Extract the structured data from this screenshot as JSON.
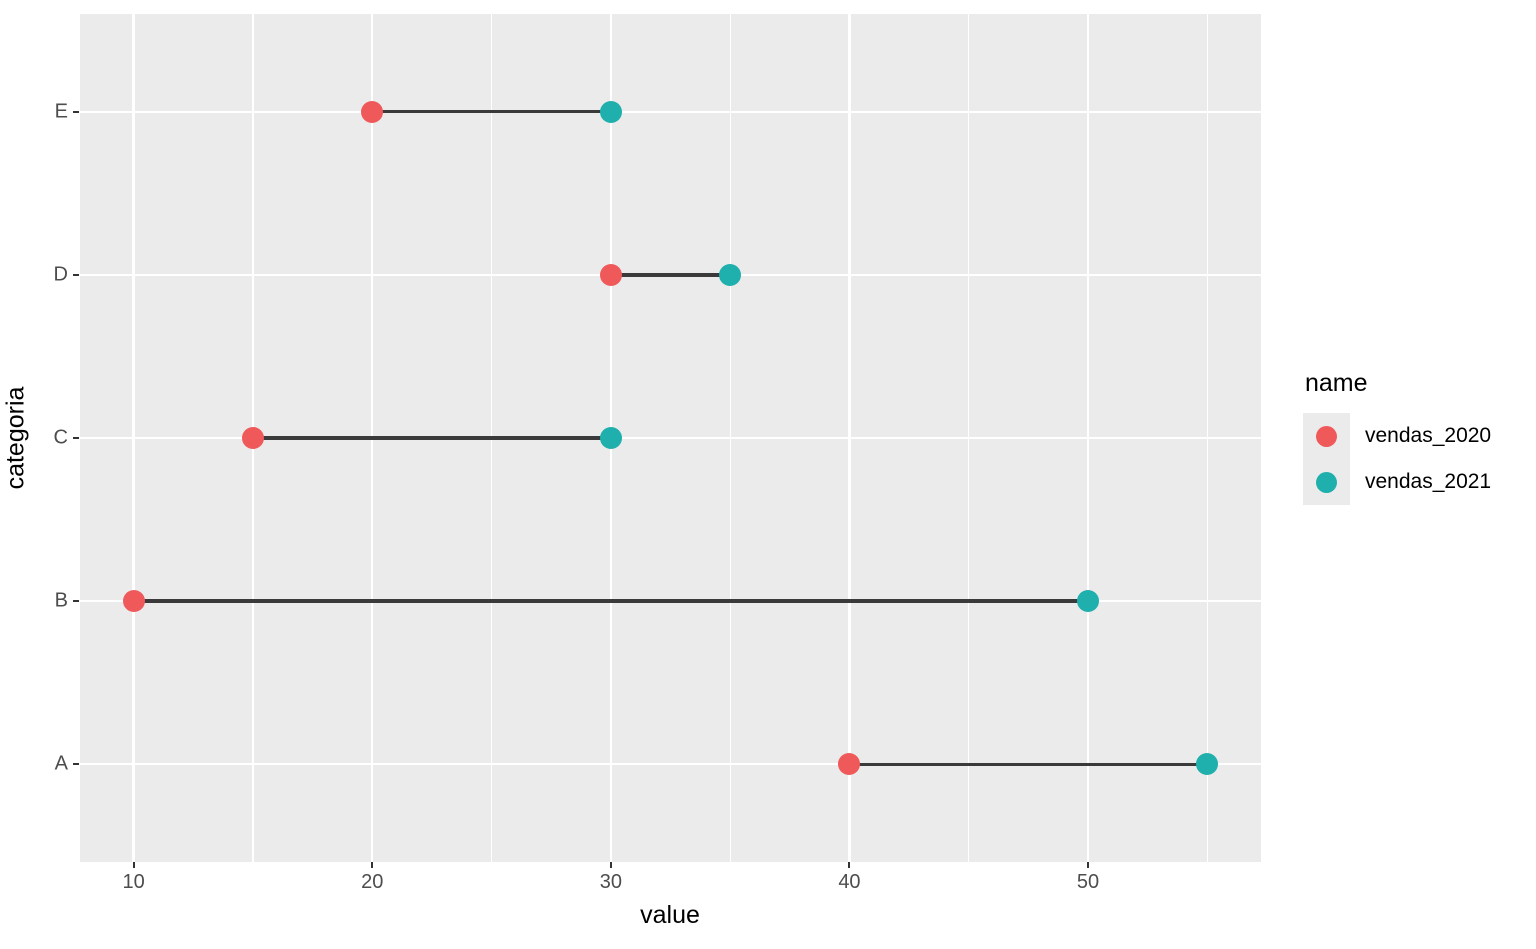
{
  "chart_data": {
    "type": "scatter",
    "variant": "dumbbell",
    "title": "",
    "xlabel": "value",
    "ylabel": "categoria",
    "categories": [
      "A",
      "B",
      "C",
      "D",
      "E"
    ],
    "category_display_order_top_to_bottom": [
      "E",
      "D",
      "C",
      "B",
      "A"
    ],
    "series": [
      {
        "name": "vendas_2020",
        "color": "#F0595A",
        "values": [
          40,
          10,
          15,
          30,
          20
        ]
      },
      {
        "name": "vendas_2021",
        "color": "#1FAFAC",
        "values": [
          55,
          50,
          30,
          35,
          30
        ]
      }
    ],
    "connectors": [
      {
        "category": "A",
        "from": 40,
        "to": 55
      },
      {
        "category": "B",
        "from": 10,
        "to": 50
      },
      {
        "category": "C",
        "from": 15,
        "to": 30
      },
      {
        "category": "D",
        "from": 30,
        "to": 35
      },
      {
        "category": "E",
        "from": 20,
        "to": 30
      }
    ],
    "x_major_ticks": [
      10,
      20,
      30,
      40,
      50
    ],
    "x_minor_ticks": [
      15,
      25,
      35,
      45,
      55
    ],
    "xlim": [
      7.75,
      57.25
    ],
    "grid": true,
    "legend": {
      "title": "name",
      "position": "right"
    },
    "colors": {
      "panel_background": "#EBEBEB",
      "gridline": "#FFFFFF",
      "connector": "#3A3A3A",
      "axis_text": "#4D4D4D",
      "tick_mark": "#333333",
      "axis_title": "#000000"
    }
  }
}
